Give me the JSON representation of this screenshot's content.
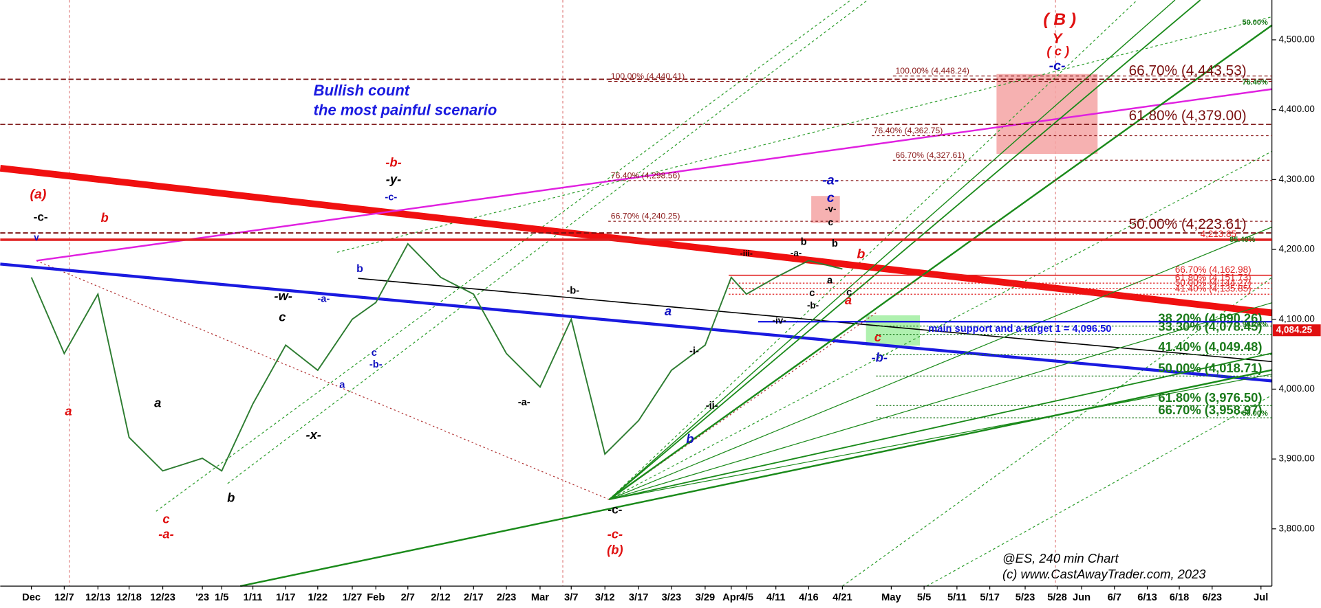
{
  "chart_data": {
    "type": "line",
    "title": "@ES, 240 min Chart",
    "subtitle": "(c) www.CastAwayTrader.com, 2023",
    "headline": [
      "Bullish count",
      "the most painful scenario"
    ],
    "categories": [
      "Dec",
      "12/7",
      "12/13",
      "12/18",
      "12/23",
      "'23",
      "1/5",
      "1/11",
      "1/17",
      "1/22",
      "1/27",
      "Feb",
      "2/7",
      "2/12",
      "2/17",
      "2/23",
      "Mar",
      "3/7",
      "3/12",
      "3/17",
      "3/23",
      "3/29",
      "Apr",
      "4/5",
      "4/11",
      "4/16",
      "4/21",
      "May",
      "5/5",
      "5/11",
      "5/17",
      "5/23",
      "5/28",
      "Jun",
      "6/7",
      "6/13",
      "6/18",
      "6/23",
      "Jul"
    ],
    "series": [
      {
        "name": "ES",
        "color": "#2e7d32",
        "values": [
          4160,
          4051,
          4136,
          3931,
          3883,
          3901,
          3883,
          3979,
          4063,
          4027,
          4100,
          4124,
          4208,
          4160,
          4136,
          4051,
          4003,
          4100,
          3907,
          3955,
          4027,
          4063,
          4160,
          4136,
          4160,
          4184,
          4172,
          null,
          null,
          null,
          null,
          null,
          null,
          null,
          null,
          null,
          null,
          null,
          null
        ]
      }
    ],
    "ylim": [
      3718,
      4557
    ],
    "yticks": [
      {
        "value": 3800,
        "label": "3,800.00"
      },
      {
        "value": 3900,
        "label": "3,900.00"
      },
      {
        "value": 4000,
        "label": "4,000.00"
      },
      {
        "value": 4100,
        "label": "4,100.00"
      },
      {
        "value": 4200,
        "label": "4,200.00"
      },
      {
        "value": 4300,
        "label": "4,300.00"
      },
      {
        "value": 4400,
        "label": "4,400.00"
      },
      {
        "value": 4500,
        "label": "4,500.00"
      }
    ],
    "last_price": {
      "value": 4084.25,
      "label": "4,084.25",
      "color": "#e01010"
    },
    "major_levels": {
      "color": "#7b1010",
      "levels": [
        {
          "label": "66.70% (4,443.53)",
          "value": 4443.53
        },
        {
          "label": "61.80% (4,379.00)",
          "value": 4379.0
        },
        {
          "label": "50.00% (4,223.61)",
          "value": 4223.61
        }
      ]
    },
    "minor_levels": {
      "color": "#8b1a1a",
      "levels": [
        {
          "label": "100.00% (4,440.41)",
          "value": 4440.41
        },
        {
          "label": "100.00% (4,448.24)",
          "value": 4448.24
        },
        {
          "label": "76.40% (4,362.75)",
          "value": 4362.75
        },
        {
          "label": "66.70% (4,327.61)",
          "value": 4327.61
        },
        {
          "label": "76.40% (4,298.56)",
          "value": 4298.56
        },
        {
          "label": "66.70% (4,240.25)",
          "value": 4240.25
        }
      ]
    },
    "resistance_levels": {
      "color": "#e02020",
      "levels": [
        {
          "label": "4,213.85",
          "value": 4213.85
        },
        {
          "label": "66.70% (4,162.98)",
          "value": 4162.98
        },
        {
          "label": "61.80% (4,151.73)",
          "value": 4151.73
        },
        {
          "label": "50.00% (4,144.27)",
          "value": 4144.27
        },
        {
          "label": "41.40% (4,135.85)",
          "value": 4135.85
        }
      ]
    },
    "target_levels": {
      "color": "#1a7a1a",
      "levels": [
        {
          "label": "38.20% (4,090.26)",
          "value": 4090.26
        },
        {
          "label": "33.30% (4,078.45)",
          "value": 4078.45
        },
        {
          "label": "41.40% (4,049.48)",
          "value": 4049.48
        },
        {
          "label": "50.00% (4,018.71)",
          "value": 4018.71
        },
        {
          "label": "61.80% (3,976.50)",
          "value": 3976.5
        },
        {
          "label": "66.70% (3,958.97)",
          "value": 3958.97
        }
      ]
    },
    "support": {
      "label": "main support and a target 1 = 4,096.50",
      "value": 4096.5,
      "color": "#1010e0"
    },
    "annotations": [
      {
        "text": "(a)",
        "color": "#e01010"
      },
      {
        "text": "-c-",
        "color": "#000000"
      },
      {
        "text": "v",
        "color": "#1010c0"
      },
      {
        "text": "b",
        "color": "#e01010"
      },
      {
        "text": "a",
        "color": "#e01010"
      },
      {
        "text": "a",
        "color": "#000000"
      },
      {
        "text": "c",
        "color": "#e01010"
      },
      {
        "text": "-a-",
        "color": "#e01010"
      },
      {
        "text": "b",
        "color": "#000000"
      },
      {
        "text": "-w-",
        "color": "#000000"
      },
      {
        "text": "c",
        "color": "#000000"
      },
      {
        "text": "-a-",
        "color": "#1010c0"
      },
      {
        "text": "-x-",
        "color": "#000000"
      },
      {
        "text": "b",
        "color": "#1010c0"
      },
      {
        "text": "a",
        "color": "#1010c0"
      },
      {
        "text": "c",
        "color": "#1010c0"
      },
      {
        "text": "-b-",
        "color": "#1010c0"
      },
      {
        "text": "-b-",
        "color": "#e01010"
      },
      {
        "text": "-y-",
        "color": "#000000"
      },
      {
        "text": "-c-",
        "color": "#1010c0"
      },
      {
        "text": "-b-",
        "color": "#000000"
      },
      {
        "text": "-a-",
        "color": "#000000"
      },
      {
        "text": "a",
        "color": "#1010c0"
      },
      {
        "text": "-i-",
        "color": "#000000"
      },
      {
        "text": "-ii-",
        "color": "#000000"
      },
      {
        "text": "b",
        "color": "#1010c0"
      },
      {
        "text": "-c-",
        "color": "#000000"
      },
      {
        "text": "-c-",
        "color": "#e01010"
      },
      {
        "text": "(b)",
        "color": "#e01010"
      },
      {
        "text": "-iii-",
        "color": "#000000"
      },
      {
        "text": "-iv-",
        "color": "#000000"
      },
      {
        "text": "-a-",
        "color": "#1010c0"
      },
      {
        "text": "c",
        "color": "#1010c0"
      },
      {
        "text": "-v-",
        "color": "#000000"
      },
      {
        "text": "c",
        "color": "#000000"
      },
      {
        "text": "b",
        "color": "#000000"
      },
      {
        "text": "-a-",
        "color": "#000000"
      },
      {
        "text": "b",
        "color": "#000000"
      },
      {
        "text": "a",
        "color": "#000000"
      },
      {
        "text": "c",
        "color": "#000000"
      },
      {
        "text": "-b-",
        "color": "#000000"
      },
      {
        "text": "c",
        "color": "#000000"
      },
      {
        "text": "b",
        "color": "#e01010"
      },
      {
        "text": "a",
        "color": "#e01010"
      },
      {
        "text": "c",
        "color": "#e01010"
      },
      {
        "text": "-b-",
        "color": "#1010c0"
      },
      {
        "text": "( B )",
        "color": "#e01010"
      },
      {
        "text": "Y",
        "color": "#e01010"
      },
      {
        "text": "( c )",
        "color": "#e01010"
      },
      {
        "text": "-c-",
        "color": "#1010c0"
      },
      {
        "text": "85.40%",
        "color": "#1a7a1a"
      },
      {
        "text": "98.20%",
        "color": "#1a7a1a"
      },
      {
        "text": "76.40%",
        "color": "#1a7a1a"
      },
      {
        "text": "50.00%",
        "color": "#1a7a1a"
      },
      {
        "text": "50.00%",
        "color": "#1a7a1a"
      }
    ]
  }
}
